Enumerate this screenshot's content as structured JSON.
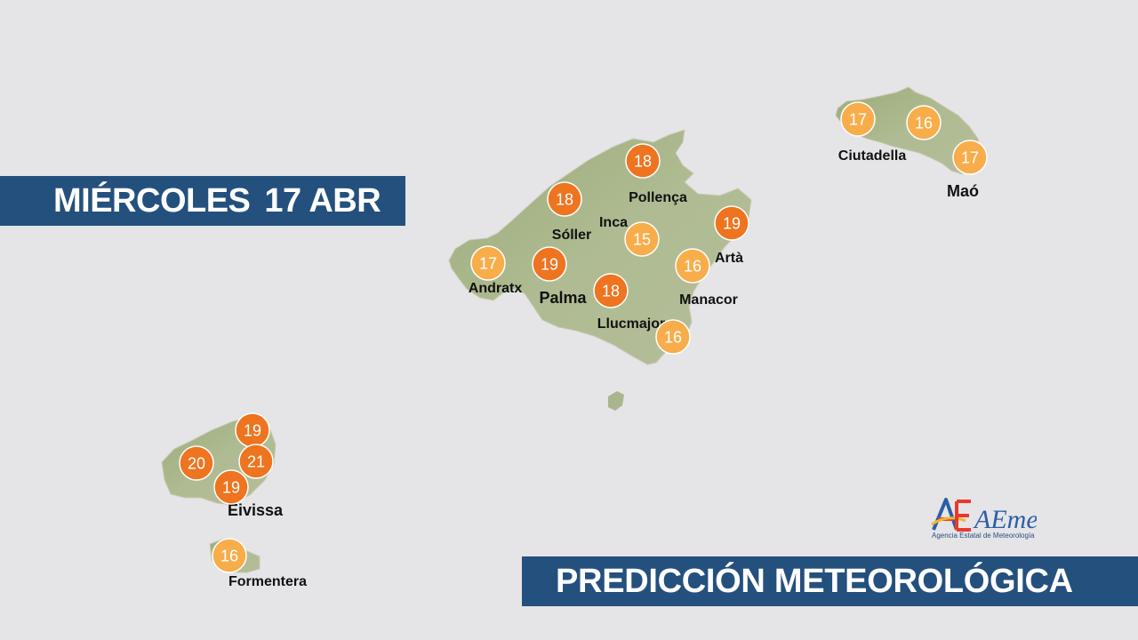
{
  "date_banner": {
    "weekday": "MIÉRCOLES",
    "date": "17 ABR"
  },
  "title_banner": "PREDICCIÓN METEOROLÓGICA",
  "logo": {
    "wordmark": "AEmet",
    "subtitle": "Agencia Estatal de Meteorología"
  },
  "colors": {
    "background": "#e5e4e7",
    "land": "#a8b58b",
    "banner": "#24507e",
    "temp_warm": "#ee7420",
    "temp_mild": "#f8ad4b"
  },
  "places": [
    {
      "name": "Pollença"
    },
    {
      "name": "Sóller"
    },
    {
      "name": "Inca"
    },
    {
      "name": "Artà"
    },
    {
      "name": "Andratx"
    },
    {
      "name": "Palma"
    },
    {
      "name": "Manacor"
    },
    {
      "name": "Llucmajor"
    },
    {
      "name": "Ciutadella"
    },
    {
      "name": "Maó"
    },
    {
      "name": "Eivissa"
    },
    {
      "name": "Formentera"
    }
  ],
  "temperatures": [
    {
      "value": 18,
      "level": "warm"
    },
    {
      "value": 18,
      "level": "warm"
    },
    {
      "value": 19,
      "level": "warm"
    },
    {
      "value": 15,
      "level": "mild"
    },
    {
      "value": 16,
      "level": "mild"
    },
    {
      "value": 17,
      "level": "mild"
    },
    {
      "value": 19,
      "level": "warm"
    },
    {
      "value": 18,
      "level": "warm"
    },
    {
      "value": 16,
      "level": "mild"
    },
    {
      "value": 17,
      "level": "mild"
    },
    {
      "value": 16,
      "level": "mild"
    },
    {
      "value": 17,
      "level": "mild"
    },
    {
      "value": 19,
      "level": "warm"
    },
    {
      "value": 20,
      "level": "warm"
    },
    {
      "value": 21,
      "level": "warm"
    },
    {
      "value": 19,
      "level": "warm"
    },
    {
      "value": 16,
      "level": "mild"
    }
  ]
}
